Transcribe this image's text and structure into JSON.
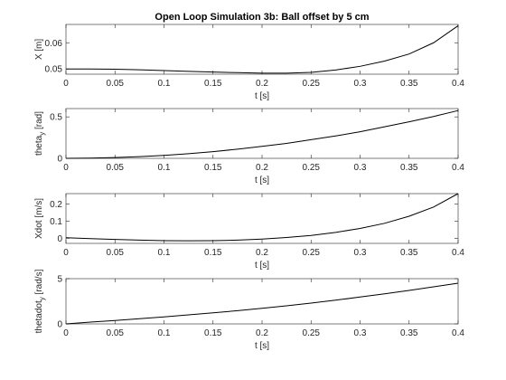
{
  "chart_data": [
    {
      "type": "line",
      "title": "Open Loop Simulation 3b: Ball offset by 5 cm",
      "xlabel": "t [s]",
      "ylabel": "X [m]",
      "x": [
        0,
        0.025,
        0.05,
        0.075,
        0.1,
        0.125,
        0.15,
        0.175,
        0.2,
        0.225,
        0.25,
        0.275,
        0.3,
        0.325,
        0.35,
        0.375,
        0.4
      ],
      "series": [
        {
          "color": "#000000",
          "values": [
            0.05,
            0.04998,
            0.0499,
            0.0497,
            0.0494,
            0.0491,
            0.0488,
            0.0486,
            0.0484,
            0.0484,
            0.0487,
            0.0496,
            0.051,
            0.053,
            0.0557,
            0.06,
            0.0665
          ]
        }
      ],
      "xlim": [
        0,
        0.4
      ],
      "xticks": [
        0,
        0.05,
        0.1,
        0.15,
        0.2,
        0.25,
        0.3,
        0.35,
        0.4
      ],
      "ylim": [
        0.048,
        0.067
      ],
      "yticks": [
        0.05,
        0.06
      ]
    },
    {
      "type": "line",
      "xlabel": "t [s]",
      "ylabel": {
        "base": "theta",
        "sub": "y",
        "rest": " [rad]"
      },
      "x": [
        0,
        0.025,
        0.05,
        0.075,
        0.1,
        0.125,
        0.15,
        0.175,
        0.2,
        0.225,
        0.25,
        0.275,
        0.3,
        0.325,
        0.35,
        0.375,
        0.4
      ],
      "series": [
        {
          "color": "#000000",
          "values": [
            0,
            0.0023,
            0.009,
            0.02,
            0.036,
            0.056,
            0.081,
            0.11,
            0.144,
            0.18,
            0.225,
            0.27,
            0.32,
            0.38,
            0.44,
            0.505,
            0.576
          ]
        }
      ],
      "xlim": [
        0,
        0.4
      ],
      "xticks": [
        0,
        0.05,
        0.1,
        0.15,
        0.2,
        0.25,
        0.3,
        0.35,
        0.4
      ],
      "ylim": [
        0,
        0.6
      ],
      "yticks": [
        0,
        0.5
      ]
    },
    {
      "type": "line",
      "xlabel": "t [s]",
      "ylabel": "Xdot [m/s]",
      "x": [
        0,
        0.025,
        0.05,
        0.075,
        0.1,
        0.125,
        0.15,
        0.175,
        0.2,
        0.225,
        0.25,
        0.275,
        0.3,
        0.325,
        0.35,
        0.375,
        0.4
      ],
      "series": [
        {
          "color": "#000000",
          "values": [
            0.003,
            -0.002,
            -0.007,
            -0.011,
            -0.014,
            -0.015,
            -0.014,
            -0.011,
            -0.005,
            0.004,
            0.016,
            0.034,
            0.057,
            0.087,
            0.128,
            0.182,
            0.26
          ]
        }
      ],
      "xlim": [
        0,
        0.4
      ],
      "xticks": [
        0,
        0.05,
        0.1,
        0.15,
        0.2,
        0.25,
        0.3,
        0.35,
        0.4
      ],
      "ylim": [
        -0.03,
        0.26
      ],
      "yticks": [
        0,
        0.1,
        0.2
      ]
    },
    {
      "type": "line",
      "xlabel": "t [s]",
      "ylabel": {
        "base": "thetadot",
        "sub": "y",
        "rest": " [rad/s]"
      },
      "x": [
        0,
        0.025,
        0.05,
        0.075,
        0.1,
        0.125,
        0.15,
        0.175,
        0.2,
        0.225,
        0.25,
        0.275,
        0.3,
        0.325,
        0.35,
        0.375,
        0.4
      ],
      "series": [
        {
          "color": "#000000",
          "values": [
            0,
            0.2,
            0.38,
            0.58,
            0.78,
            1.0,
            1.22,
            1.46,
            1.72,
            2.0,
            2.3,
            2.62,
            2.97,
            3.33,
            3.7,
            4.1,
            4.5
          ]
        }
      ],
      "xlim": [
        0,
        0.4
      ],
      "xticks": [
        0,
        0.05,
        0.1,
        0.15,
        0.2,
        0.25,
        0.3,
        0.35,
        0.4
      ],
      "ylim": [
        0,
        5
      ],
      "yticks": [
        0,
        5
      ]
    }
  ]
}
